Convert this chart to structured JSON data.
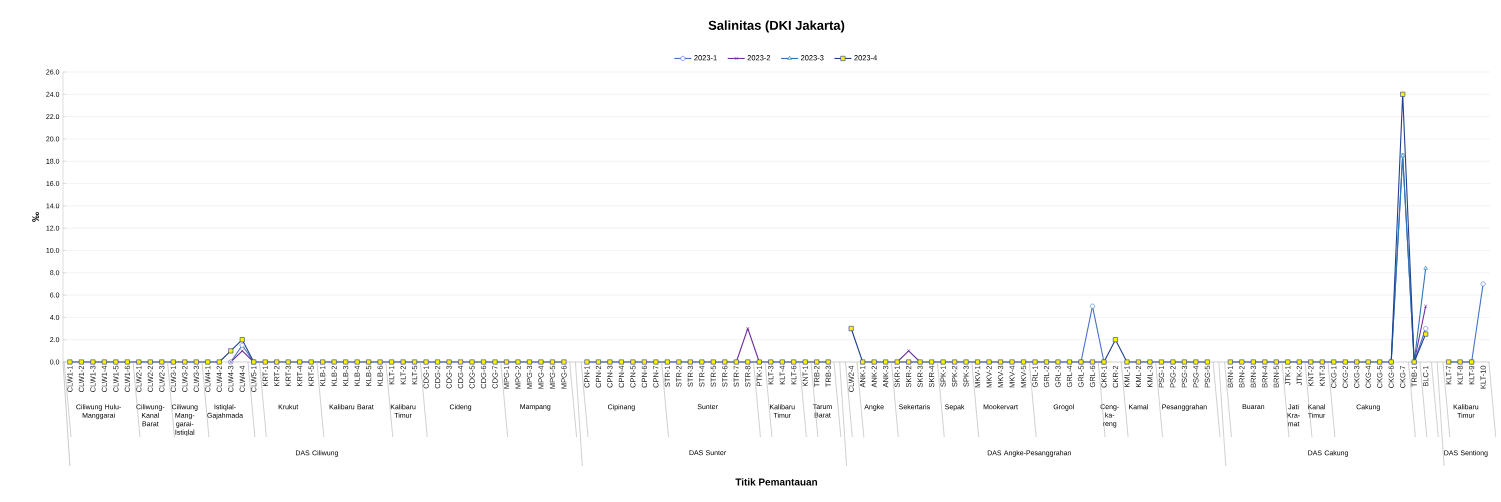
{
  "chart_data": {
    "type": "line",
    "title": "Salinitas (DKI Jakarta)",
    "ylabel": "‰",
    "categories": [
      "CLW1-1",
      "CLW1-2",
      "CLW1-3",
      "CLW1-4",
      "CLW1-5",
      "CLW1-6",
      "CLW2-1",
      "CLW2-2",
      "CLW2-3",
      "CLW3-1",
      "CLW3-2",
      "CLW3-3",
      "CLW4-1",
      "CLW4-2",
      "CLW4-3",
      "CLW4-4",
      "CLW5-1",
      "KRT-1",
      "KRT-2",
      "KRT-3",
      "KRT-4",
      "KRT-5",
      "KLB-1",
      "KLB-2",
      "KLB-3",
      "KLB-4",
      "KLB-5",
      "KLB-6",
      "KLT-1",
      "KLT-2",
      "KLT-5",
      "CDG-1",
      "CDG-2",
      "CDG-3",
      "CDG-4",
      "CDG-5",
      "CDG-6",
      "CDG-7",
      "MPG-1",
      "MPG-2",
      "MPG-3",
      "MPG-4",
      "MPG-5",
      "MPG-6",
      null,
      "CPN-1",
      "CPN-2",
      "CPN-3",
      "CPN-4",
      "CPN-5",
      "CPN-6",
      "CPN-7",
      "STR-1",
      "STR-2",
      "STR-3",
      "STR-4",
      "STR-5",
      "STR-6",
      "STR-7",
      "STR-8",
      "PTK-1",
      "KLT-3",
      "KLT-4",
      "KLT-6",
      "KNT-1",
      "TRB-2",
      "TRB-3",
      null,
      "CLW2-4",
      "ANK-1",
      "ANK-2",
      "ANK-3",
      "SKR-1",
      "SKR-2",
      "SKR-3",
      "SKR-4",
      "SPK-1",
      "SPK-2",
      "SPK-3",
      "MKV-1",
      "MKV-2",
      "MKV-3",
      "MKV-4",
      "MKV-5",
      "GRL-1",
      "GRL-2",
      "GRL-3",
      "GRL-4",
      "GRL-5",
      "GRL-6",
      "CKR-1",
      "CKR-2",
      "KML-1",
      "KML-2",
      "KML-3",
      "PSG-1",
      "PSG-2",
      "PSG-3",
      "PSG-4",
      "PSG-5",
      null,
      "BRN-1",
      "BRN-2",
      "BRN-3",
      "BRN-4",
      "BRN-5",
      "JTK-1",
      "JTK-2",
      "KNT-2",
      "KNT-3",
      "CKG-1",
      "CKG-2",
      "CKG-3",
      "CKG-4",
      "CKG-5",
      "CKG-6",
      "CKG-7",
      "TRB-1",
      "BLC-1",
      null,
      "KLT-7",
      "KLT-8",
      "KLT-9",
      "KLT-10"
    ],
    "series": [
      {
        "name": "2023-1",
        "color": "#4472c4",
        "marker": "circle",
        "values": [
          null,
          null,
          null,
          null,
          null,
          null,
          null,
          null,
          null,
          null,
          null,
          null,
          null,
          null,
          0,
          1.5,
          0,
          null,
          null,
          null,
          null,
          null,
          null,
          null,
          null,
          null,
          null,
          null,
          null,
          null,
          null,
          null,
          null,
          null,
          null,
          null,
          null,
          null,
          null,
          null,
          null,
          null,
          null,
          null,
          null,
          null,
          null,
          null,
          null,
          null,
          null,
          null,
          null,
          null,
          null,
          null,
          null,
          null,
          null,
          null,
          null,
          null,
          null,
          null,
          null,
          null,
          null,
          null,
          null,
          null,
          null,
          null,
          null,
          null,
          null,
          null,
          null,
          null,
          null,
          null,
          null,
          null,
          null,
          null,
          null,
          null,
          null,
          null,
          0,
          5,
          0,
          null,
          null,
          null,
          null,
          null,
          null,
          null,
          null,
          null,
          null,
          null,
          null,
          null,
          null,
          null,
          null,
          null,
          null,
          null,
          null,
          null,
          null,
          null,
          null,
          0,
          18.5,
          0,
          3,
          null,
          null,
          null,
          0,
          7
        ]
      },
      {
        "name": "2023-2",
        "color": "#7030a0",
        "marker": "cross",
        "values": [
          null,
          null,
          null,
          null,
          null,
          null,
          null,
          null,
          null,
          null,
          null,
          null,
          null,
          null,
          0,
          1,
          0,
          null,
          null,
          null,
          null,
          null,
          null,
          null,
          null,
          null,
          null,
          null,
          null,
          null,
          null,
          null,
          null,
          null,
          null,
          null,
          null,
          null,
          null,
          null,
          null,
          null,
          null,
          null,
          null,
          null,
          null,
          null,
          null,
          null,
          null,
          null,
          null,
          null,
          null,
          null,
          null,
          null,
          0,
          3,
          0,
          null,
          null,
          null,
          null,
          null,
          null,
          null,
          null,
          null,
          null,
          null,
          0,
          1,
          0,
          null,
          null,
          null,
          null,
          null,
          null,
          null,
          null,
          null,
          null,
          null,
          null,
          null,
          null,
          null,
          null,
          null,
          null,
          null,
          null,
          null,
          null,
          null,
          null,
          null,
          null,
          null,
          null,
          null,
          null,
          null,
          null,
          null,
          null,
          null,
          null,
          null,
          null,
          null,
          null,
          null,
          null,
          0,
          5,
          null,
          null,
          null,
          null,
          null
        ]
      },
      {
        "name": "2023-3",
        "color": "#2e75b6",
        "marker": "triangle",
        "values": [
          null,
          null,
          null,
          null,
          null,
          null,
          null,
          null,
          null,
          null,
          null,
          null,
          null,
          null,
          null,
          null,
          null,
          null,
          null,
          null,
          null,
          null,
          null,
          null,
          null,
          null,
          null,
          null,
          null,
          null,
          null,
          null,
          null,
          null,
          null,
          null,
          null,
          null,
          null,
          null,
          null,
          null,
          null,
          null,
          null,
          null,
          null,
          null,
          null,
          null,
          null,
          null,
          null,
          null,
          null,
          null,
          null,
          null,
          null,
          null,
          null,
          null,
          null,
          null,
          null,
          null,
          null,
          null,
          null,
          null,
          null,
          null,
          null,
          null,
          null,
          null,
          null,
          null,
          null,
          null,
          null,
          null,
          null,
          null,
          null,
          null,
          null,
          null,
          null,
          null,
          null,
          null,
          null,
          null,
          null,
          null,
          null,
          null,
          null,
          null,
          null,
          null,
          null,
          null,
          null,
          null,
          null,
          null,
          null,
          null,
          null,
          null,
          null,
          null,
          null,
          0,
          18.5,
          0,
          8.4,
          null,
          null,
          null,
          null,
          null
        ]
      },
      {
        "name": "2023-4",
        "color": "#1f3f8f",
        "marker": "square",
        "values": [
          0,
          0,
          0,
          0,
          0,
          0,
          0,
          0,
          0,
          0,
          0,
          0,
          0,
          0,
          1,
          2,
          0,
          0,
          0,
          0,
          0,
          0,
          0,
          0,
          0,
          0,
          0,
          0,
          0,
          0,
          0,
          0,
          0,
          0,
          0,
          0,
          0,
          0,
          0,
          0,
          0,
          0,
          0,
          0,
          null,
          0,
          0,
          0,
          0,
          0,
          0,
          0,
          0,
          0,
          0,
          0,
          0,
          0,
          0,
          0,
          0,
          0,
          0,
          0,
          0,
          0,
          0,
          null,
          3,
          0,
          0,
          0,
          0,
          0,
          0,
          0,
          0,
          0,
          0,
          0,
          0,
          0,
          0,
          0,
          0,
          0,
          0,
          0,
          0,
          0,
          0,
          2,
          0,
          0,
          0,
          0,
          0,
          0,
          0,
          0,
          null,
          0,
          0,
          0,
          0,
          0,
          0,
          0,
          0,
          0,
          0,
          0,
          0,
          0,
          0,
          0,
          24,
          0,
          2.5,
          null,
          0,
          0,
          0,
          null
        ]
      }
    ],
    "ylim": [
      0,
      26
    ],
    "yticks": [
      {
        "value": 0,
        "label": "0.0"
      },
      {
        "value": 2,
        "label": "2.0"
      },
      {
        "value": 4,
        "label": "4.0"
      },
      {
        "value": 6,
        "label": "6.0"
      },
      {
        "value": 8,
        "label": "8.0"
      },
      {
        "value": 10,
        "label": "10.0"
      },
      {
        "value": 12,
        "label": "12.0"
      },
      {
        "value": 14,
        "label": "14.0"
      },
      {
        "value": 16,
        "label": "16.0"
      },
      {
        "value": 18,
        "label": "18.0"
      },
      {
        "value": 20,
        "label": "20.0"
      },
      {
        "value": 22,
        "label": "22.0"
      },
      {
        "value": 24,
        "label": "24.0"
      },
      {
        "value": 26,
        "label": "26.0"
      }
    ],
    "grid": "y",
    "legend": "top",
    "annotations": [
      "Ciliwung Hulu-Manggarai",
      "Ciliwung-Kanal Barat",
      "Ciliwung Mang-garai-Istiqlal",
      "Istiqlal-Gajahmada",
      "Krukut",
      "Kalibaru Barat",
      "Kalibaru Timur",
      "Cideng",
      "Mampang",
      "Cipinang",
      "Sunter",
      "Kalibaru Timur",
      "Tarum Barat",
      "Angke",
      "Sekertaris",
      "Sepak",
      "Mookervart",
      "Grogol",
      "Ceng-ka-reng",
      "Kamal",
      "Pesanggrahan",
      "Buaran",
      "Jati Kra-mat",
      "Kanal Timur",
      "Cakung",
      "Kalibaru Timur",
      "DAS Ciliwung",
      "DAS Sunter",
      "DAS Angke-Pesanggrahan",
      "DAS Cakung",
      "DAS Sentiong",
      "Titik Pemantauan"
    ]
  }
}
